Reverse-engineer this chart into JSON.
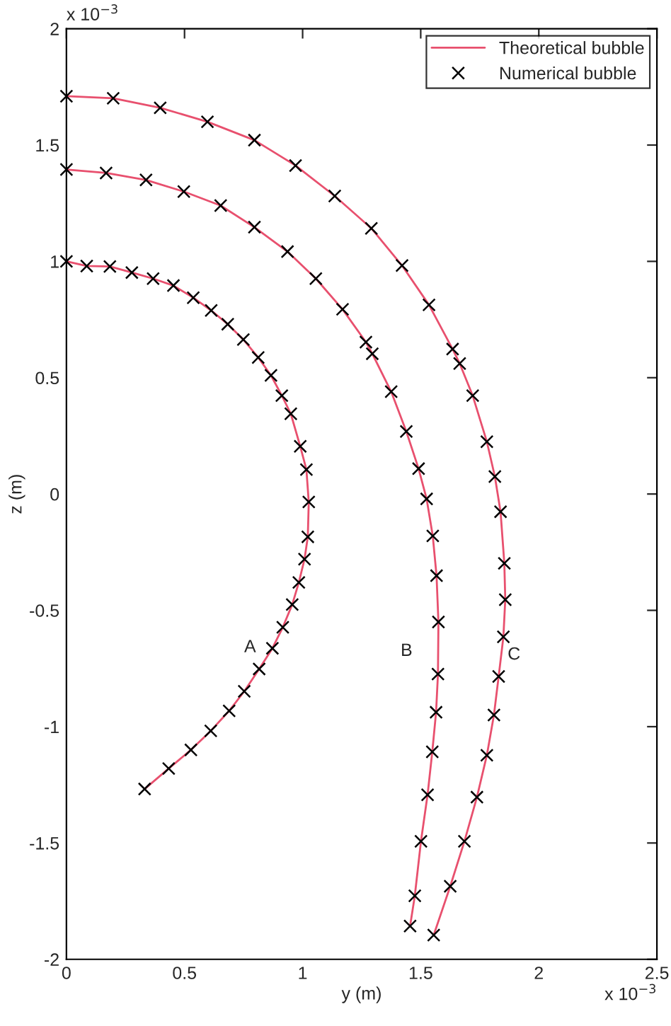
{
  "chart_data": {
    "type": "line",
    "xlabel": "y (m)",
    "ylabel": "z (m)",
    "xlim": [
      0,
      2.5
    ],
    "ylim": [
      -2,
      2
    ],
    "xticks": [
      0,
      0.5,
      1,
      1.5,
      2,
      2.5
    ],
    "yticks": [
      -2,
      -1.5,
      -1,
      -0.5,
      0,
      0.5,
      1,
      1.5,
      2
    ],
    "grid": false,
    "legend": "top right",
    "annotations": [
      "x 10$^{−3}$",
      "x 10$^{−3}$",
      "A",
      "B",
      "C"
    ],
    "series": [
      {
        "name": "Theoretical bubble",
        "color": "#e8506e",
        "line_style": "solid",
        "marker": "none",
        "x": [
          0,
          0.086,
          0.184,
          0.277,
          0.367,
          0.453,
          0.537,
          0.613,
          0.683,
          0.749,
          0.812,
          0.866,
          0.912,
          0.95,
          0.99,
          1.016,
          1.026,
          1.022,
          1.008,
          0.984,
          0.956,
          0.916,
          0.872,
          0.816,
          0.753,
          0.689,
          0.611,
          0.527,
          0.433,
          0.331
        ],
        "values": [
          1.0,
          0.98,
          0.978,
          0.952,
          0.926,
          0.896,
          0.844,
          0.789,
          0.73,
          0.664,
          0.587,
          0.51,
          0.423,
          0.345,
          0.205,
          0.105,
          -0.034,
          -0.184,
          -0.28,
          -0.38,
          -0.475,
          -0.573,
          -0.663,
          -0.752,
          -0.848,
          -0.932,
          -1.018,
          -1.1,
          -1.18,
          -1.268
        ]
      },
      {
        "color": "#e8506e",
        "line_style": "solid",
        "marker": "none",
        "x": [
          0,
          0.168,
          0.337,
          0.497,
          0.653,
          0.796,
          0.936,
          1.056,
          1.169,
          1.268,
          1.295,
          1.375,
          1.439,
          1.491,
          1.525,
          1.551,
          1.567,
          1.575,
          1.573,
          1.565,
          1.549,
          1.529,
          1.501,
          1.475,
          1.455
        ],
        "values": [
          1.395,
          1.38,
          1.35,
          1.3,
          1.24,
          1.147,
          1.042,
          0.926,
          0.794,
          0.653,
          0.603,
          0.44,
          0.269,
          0.109,
          -0.021,
          -0.18,
          -0.351,
          -0.55,
          -0.774,
          -0.938,
          -1.108,
          -1.293,
          -1.493,
          -1.727,
          -1.857
        ]
      },
      {
        "color": "#e8506e",
        "line_style": "solid",
        "marker": "none",
        "x": [
          0,
          0.198,
          0.397,
          0.597,
          0.796,
          0.97,
          1.136,
          1.291,
          1.421,
          1.535,
          1.635,
          1.665,
          1.72,
          1.78,
          1.814,
          1.838,
          1.854,
          1.858,
          1.85,
          1.83,
          1.81,
          1.78,
          1.738,
          1.685,
          1.625,
          1.555
        ],
        "values": [
          1.71,
          1.701,
          1.66,
          1.6,
          1.521,
          1.412,
          1.281,
          1.142,
          0.982,
          0.813,
          0.623,
          0.561,
          0.423,
          0.225,
          0.075,
          -0.076,
          -0.298,
          -0.454,
          -0.614,
          -0.784,
          -0.95,
          -1.123,
          -1.303,
          -1.493,
          -1.686,
          -1.896
        ]
      },
      {
        "type": "scatter",
        "name": "Numerical bubble",
        "color": "#000000",
        "marker": "cross",
        "x": [
          0,
          0.086,
          0.184,
          0.277,
          0.367,
          0.453,
          0.537,
          0.613,
          0.683,
          0.749,
          0.812,
          0.866,
          0.912,
          0.95,
          0.99,
          1.016,
          1.026,
          1.022,
          1.008,
          0.984,
          0.956,
          0.916,
          0.872,
          0.816,
          0.753,
          0.689,
          0.611,
          0.527,
          0.433,
          0.331
        ],
        "values": [
          1.0,
          0.98,
          0.978,
          0.952,
          0.926,
          0.896,
          0.844,
          0.789,
          0.73,
          0.664,
          0.587,
          0.51,
          0.423,
          0.345,
          0.205,
          0.105,
          -0.034,
          -0.184,
          -0.28,
          -0.38,
          -0.475,
          -0.573,
          -0.663,
          -0.752,
          -0.848,
          -0.932,
          -1.018,
          -1.1,
          -1.18,
          -1.268
        ]
      },
      {
        "type": "scatter",
        "color": "#000000",
        "marker": "cross",
        "x": [
          0,
          0.168,
          0.337,
          0.497,
          0.653,
          0.796,
          0.936,
          1.056,
          1.169,
          1.268,
          1.295,
          1.375,
          1.439,
          1.491,
          1.525,
          1.551,
          1.567,
          1.575,
          1.573,
          1.565,
          1.549,
          1.529,
          1.501,
          1.475,
          1.455
        ],
        "values": [
          1.395,
          1.38,
          1.35,
          1.3,
          1.24,
          1.147,
          1.042,
          0.926,
          0.794,
          0.653,
          0.603,
          0.44,
          0.269,
          0.109,
          -0.021,
          -0.18,
          -0.351,
          -0.55,
          -0.774,
          -0.938,
          -1.108,
          -1.293,
          -1.493,
          -1.727,
          -1.857
        ]
      },
      {
        "type": "scatter",
        "color": "#000000",
        "marker": "cross",
        "x": [
          0,
          0.198,
          0.397,
          0.597,
          0.796,
          0.97,
          1.136,
          1.291,
          1.421,
          1.535,
          1.635,
          1.665,
          1.72,
          1.78,
          1.814,
          1.838,
          1.854,
          1.858,
          1.85,
          1.83,
          1.81,
          1.78,
          1.738,
          1.685,
          1.625,
          1.555
        ],
        "values": [
          1.71,
          1.701,
          1.66,
          1.6,
          1.521,
          1.412,
          1.281,
          1.142,
          0.982,
          0.813,
          0.623,
          0.561,
          0.423,
          0.225,
          0.075,
          -0.076,
          -0.298,
          -0.454,
          -0.614,
          -0.784,
          -0.95,
          -1.123,
          -1.303,
          -1.493,
          -1.686,
          -1.896
        ]
      }
    ]
  }
}
